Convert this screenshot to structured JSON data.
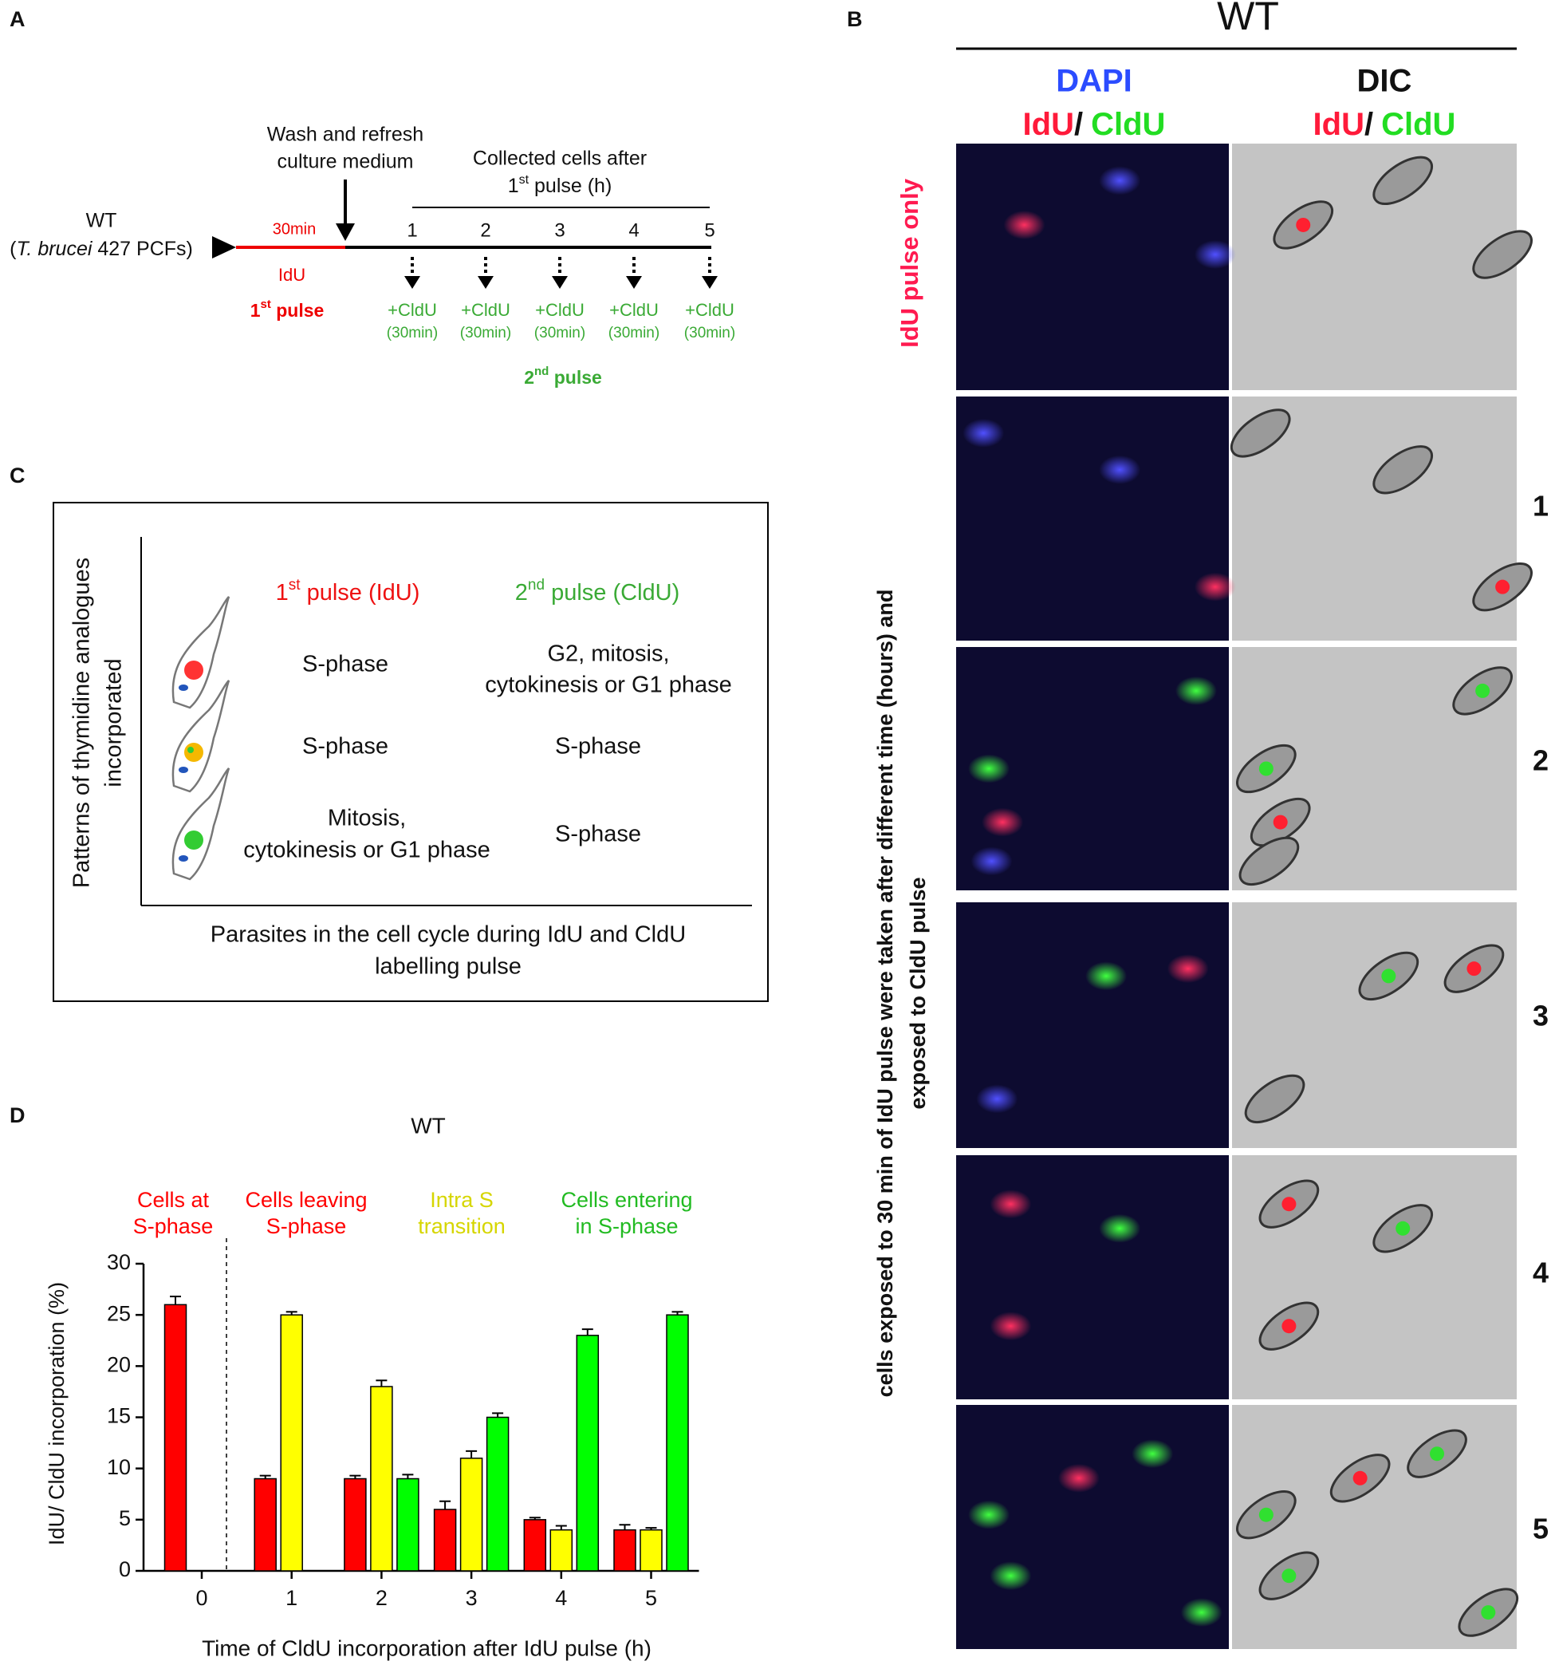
{
  "panel_a": {
    "letter": "A",
    "strain": "WT",
    "strain_detail": [
      "(",
      "T. brucei",
      " 427 PCFs)"
    ],
    "wash": [
      "Wash and refresh",
      "culture medium"
    ],
    "first_duration": "30min",
    "first_agent": "IdU",
    "first_pulse": [
      "1",
      "st",
      " pulse"
    ],
    "collected": [
      "Collected cells after",
      "1",
      "st",
      " pulse (h)"
    ],
    "timepoints": [
      "1",
      "2",
      "3",
      "4",
      "5"
    ],
    "second_agents": [
      "+CldU",
      "+CldU",
      "+CldU",
      "+CldU",
      "+CldU"
    ],
    "second_durations": [
      "(30min)",
      "(30min)",
      "(30min)",
      "(30min)",
      "(30min)"
    ],
    "second_pulse": [
      "2",
      "nd",
      " pulse"
    ]
  },
  "panel_b": {
    "letter": "B",
    "title": "WT",
    "col1": [
      "DAPI",
      "IdU",
      "/",
      "CldU"
    ],
    "col2": [
      "DIC",
      "IdU",
      "/",
      "CldU"
    ],
    "row0_label": "IdU pulse only",
    "side_label": [
      "cells exposed to 30 min of IdU pulse were taken after different time (hours) and",
      "exposed to CldU pulse"
    ],
    "rows": [
      "1",
      "2",
      "3",
      "4",
      "5"
    ]
  },
  "panel_c": {
    "letter": "C",
    "y_label": [
      "Patterns of thymidine analogues",
      "incorporated"
    ],
    "x_label": [
      "Parasites in the cell cycle during IdU and CldU",
      "labelling pulse"
    ],
    "head1": [
      "1",
      "st",
      " pulse (IdU)"
    ],
    "head2": [
      "2",
      "nd",
      " pulse (CldU)"
    ],
    "rows": [
      {
        "first": [
          "S-phase"
        ],
        "second": [
          "G2, mitosis,",
          "cytokinesis or G1 phase"
        ]
      },
      {
        "first": [
          "S-phase"
        ],
        "second": [
          "S-phase"
        ]
      },
      {
        "first": [
          "Mitosis,",
          "cytokinesis or G1 phase"
        ],
        "second": [
          "S-phase"
        ]
      }
    ]
  },
  "panel_d": {
    "letter": "D"
  },
  "chart_data": {
    "type": "bar",
    "title": "WT",
    "x_label": "Time of CldU incorporation after IdU pulse (h)",
    "y_label": "IdU/ CldU incorporation (%)",
    "categories": [
      "0",
      "1",
      "2",
      "3",
      "4",
      "5"
    ],
    "series": [
      {
        "color": "#ff0000",
        "values": [
          26,
          9,
          9,
          6,
          5,
          4
        ],
        "errors": [
          0.8,
          0.3,
          0.3,
          0.8,
          0.2,
          0.5
        ]
      },
      {
        "color": "#ffff00",
        "values": [
          null,
          25,
          18,
          11,
          4,
          4
        ],
        "errors": [
          null,
          0.3,
          0.6,
          0.7,
          0.4,
          0.2
        ]
      },
      {
        "color": "#00ff00",
        "values": [
          null,
          null,
          9,
          15,
          23,
          25
        ],
        "errors": [
          null,
          null,
          0.4,
          0.4,
          0.6,
          0.3
        ]
      }
    ],
    "ylim": [
      0,
      30
    ],
    "yticks": [
      0,
      5,
      10,
      15,
      20,
      25,
      30
    ],
    "annotations": [
      {
        "text": [
          "Cells at",
          "S-phase"
        ],
        "color": "#ff0000"
      },
      {
        "text": [
          "Cells leaving",
          "S-phase"
        ],
        "color": "#ff0000"
      },
      {
        "text": [
          "Intra S",
          "transition"
        ],
        "color": "#d6d600"
      },
      {
        "text": [
          "Cells entering",
          "in S-phase"
        ],
        "color": "#22bb22"
      }
    ]
  }
}
